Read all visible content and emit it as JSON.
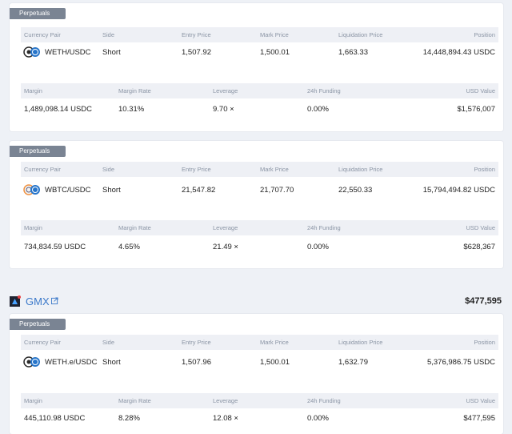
{
  "headers_pos": [
    "Currency Pair",
    "Side",
    "Entry Price",
    "Mark Price",
    "Liquidation Price",
    "Position"
  ],
  "headers_margin": [
    "Margin",
    "Margin Rate",
    "Leverage",
    "24h Funding",
    "USD Value"
  ],
  "protocol": {
    "name": "GMX",
    "value": "$477,595",
    "logo_icon": "gmx-logo-icon",
    "link_icon": "external-link-icon"
  },
  "cards": [
    {
      "tag": "Perpetuals",
      "pair": "WETH/USDC",
      "side": "Short",
      "entry": "1,507.92",
      "mark": "1,500.01",
      "liq": "1,663.33",
      "position": "14,448,894.43 USDC",
      "margin": "1,489,098.14 USDC",
      "margin_rate": "10.31%",
      "leverage": "9.70 ×",
      "funding": "0.00%",
      "usd_value": "$1,576,007"
    },
    {
      "tag": "Perpetuals",
      "pair": "WBTC/USDC",
      "side": "Short",
      "entry": "21,547.82",
      "mark": "21,707.70",
      "liq": "22,550.33",
      "position": "15,794,494.82 USDC",
      "margin": "734,834.59 USDC",
      "margin_rate": "4.65%",
      "leverage": "21.49 ×",
      "funding": "0.00%",
      "usd_value": "$628,367"
    },
    {
      "tag": "Perpetuals",
      "pair": "WETH.e/USDC",
      "side": "Short",
      "entry": "1,507.96",
      "mark": "1,500.01",
      "liq": "1,632.79",
      "position": "5,376,986.75 USDC",
      "margin": "445,110.98 USDC",
      "margin_rate": "8.28%",
      "leverage": "12.08 ×",
      "funding": "0.00%",
      "usd_value": "$477,595"
    }
  ],
  "colors": {
    "accent": "#3a78c9",
    "tag_bg": "#7a8493",
    "header_bg": "#eef0f5",
    "page_bg": "#eef1f6"
  }
}
